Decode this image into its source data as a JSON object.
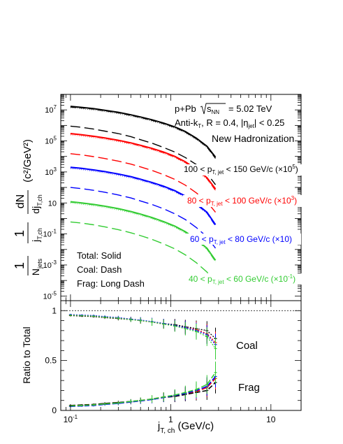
{
  "chart_data": [
    {
      "type": "line",
      "panel": "top",
      "x_scale": "log",
      "y_scale": "log",
      "xlim": [
        0.08,
        20
      ],
      "ylim": [
        5e-06,
        100000000
      ],
      "y_ticks": [
        {
          "v": 10000000,
          "base": "10",
          "exp": "7"
        },
        {
          "v": 100000,
          "base": "10",
          "exp": "5"
        },
        {
          "v": 1000,
          "base": "10",
          "exp": "3"
        },
        {
          "v": 10,
          "base": "10",
          "exp": ""
        },
        {
          "v": 0.1,
          "base": "10",
          "exp": "-1"
        },
        {
          "v": 0.001,
          "base": "10",
          "exp": "-3"
        },
        {
          "v": 1e-05,
          "base": "10",
          "exp": "-5"
        }
      ],
      "ylabel": {
        "first": "1",
        "first_denominator": "N",
        "first_denominator_sub": "jets",
        "second": "1",
        "second_denominator": "j",
        "second_denominator_sub": "T,ch",
        "third": "dN",
        "third_denominator": "dj",
        "third_denominator_sub": "T,ch",
        "units": "(c²/GeV²)"
      },
      "annotations": {
        "system_a": "p+Pb",
        "system_root": "s",
        "system_root_sub": "NN",
        "system_b": "= 5.02 TeV",
        "algo_a": "Anti-k",
        "algo_sub": "T",
        "algo_b": ", R = 0.4, |η",
        "algo_eta_sub": "jet",
        "algo_c": "| < 0.25",
        "model": "New Hadronization"
      },
      "legend": {
        "total": "Total: Solid",
        "coal": "Coal: Dash",
        "frag": "Frag: Long Dash"
      },
      "bin_labels": [
        {
          "pre": "100 < p",
          "sub": "T, jet",
          "post": " < 150 GeV/c (×10",
          "sup": "5",
          "end": ")",
          "color": "#000000"
        },
        {
          "pre": "80 < p",
          "sub": "T, jet",
          "post": " < 100 GeV/c (×10",
          "sup": "3",
          "end": ")",
          "color": "#ff0000"
        },
        {
          "pre": "60 < p",
          "sub": "T, jet",
          "post": " < 80 GeV/c (×10)",
          "sup": "",
          "end": "",
          "color": "#0000ff"
        },
        {
          "pre": "40 < p",
          "sub": "T, jet",
          "post": " < 60 GeV/c (×10",
          "sup": "-1",
          "end": ")",
          "color": "#33cc33"
        }
      ],
      "x": [
        0.1,
        0.13,
        0.17,
        0.22,
        0.3,
        0.4,
        0.5,
        0.65,
        0.85,
        1.1,
        1.4,
        1.8,
        2.3,
        2.8
      ],
      "series": [
        {
          "bin": "100-150",
          "component": "Total",
          "color": "#000000",
          "values": [
            17000000,
            14500000,
            12000000,
            9500000,
            7000000,
            4800000,
            3500000,
            2300000,
            1400000,
            800000,
            400000,
            150000,
            45000,
            9000
          ]
        },
        {
          "bin": "100-150",
          "component": "Coal",
          "color": "#000000",
          "values": [
            15500000,
            13500000,
            11200000,
            8800000,
            6500000,
            4500000,
            3250000,
            2130000,
            1300000,
            740000,
            370000,
            138000,
            41000,
            7500
          ]
        },
        {
          "bin": "100-150",
          "component": "Frag",
          "color": "#000000",
          "values": [
            900000,
            750000,
            580000,
            430000,
            300000,
            190000,
            120000,
            72000,
            38000,
            19000,
            8500,
            3000,
            800,
            150
          ]
        },
        {
          "bin": "80-100",
          "component": "Total",
          "color": "#ff0000",
          "values": [
            300000,
            250000,
            200000,
            155000,
            110000,
            75000,
            52000,
            33000,
            19000,
            10000,
            4500,
            1500,
            420,
            80
          ]
        },
        {
          "bin": "80-100",
          "component": "Coal",
          "color": "#ff0000",
          "values": [
            285000,
            240000,
            190000,
            147000,
            104000,
            70000,
            48500,
            30500,
            17500,
            9200,
            4100,
            1360,
            375,
            65
          ]
        },
        {
          "bin": "80-100",
          "component": "Frag",
          "color": "#ff0000",
          "values": [
            15000,
            12500,
            9700,
            7300,
            5000,
            3200,
            2100,
            1250,
            670,
            330,
            140,
            45,
            12,
            2.5
          ]
        },
        {
          "bin": "60-80",
          "component": "Total",
          "color": "#0000ff",
          "values": [
            2000,
            1700,
            1350,
            1050,
            740,
            500,
            340,
            210,
            120,
            62,
            28,
            9,
            2.5,
            0.4
          ]
        },
        {
          "bin": "60-80",
          "component": "Coal",
          "color": "#0000ff",
          "values": [
            1900,
            1620,
            1290,
            1000,
            700,
            470,
            318,
            195,
            111,
            57,
            25.5,
            8.2,
            2.25,
            0.33
          ]
        },
        {
          "bin": "60-80",
          "component": "Frag",
          "color": "#0000ff",
          "values": [
            100,
            84,
            65,
            49,
            33,
            21,
            13.5,
            8,
            4.2,
            2,
            0.85,
            0.26,
            0.065,
            0.012
          ]
        },
        {
          "bin": "40-60",
          "component": "Total",
          "color": "#33cc33",
          "values": [
            12,
            10,
            8,
            6.2,
            4.3,
            2.8,
            1.9,
            1.15,
            0.63,
            0.32,
            0.14,
            0.045,
            0.012,
            0.002
          ]
        },
        {
          "bin": "40-60",
          "component": "Coal",
          "color": "#33cc33",
          "values": [
            11.4,
            9.5,
            7.6,
            5.9,
            4.1,
            2.65,
            1.8,
            1.08,
            0.59,
            0.3,
            0.13,
            0.041,
            0.0108,
            0.0017
          ]
        },
        {
          "bin": "40-60",
          "component": "Frag",
          "color": "#33cc33",
          "values": [
            0.6,
            0.5,
            0.39,
            0.29,
            0.19,
            0.12,
            0.078,
            0.045,
            0.023,
            0.011,
            0.0045,
            0.0014,
            0.00035,
            7e-05
          ]
        }
      ]
    },
    {
      "type": "scatter",
      "panel": "bottom",
      "x_scale": "log",
      "xlim": [
        0.08,
        20
      ],
      "ylim": [
        0,
        1.1
      ],
      "reference_line_y": 1,
      "ylabel": "Ratio to Total",
      "xlabel": {
        "pre": "j",
        "sub": "T, ch",
        "post": " (GeV/c)"
      },
      "x_ticks": [
        {
          "v": 0.1,
          "base": "10",
          "exp": "-1"
        },
        {
          "v": 1,
          "base": "1",
          "exp": ""
        },
        {
          "v": 10,
          "base": "10",
          "exp": ""
        }
      ],
      "y_ticks": [
        {
          "v": 0,
          "label": "0"
        },
        {
          "v": 0.5,
          "label": "0.5"
        },
        {
          "v": 1,
          "label": "1"
        }
      ],
      "labels": {
        "coal": "Coal",
        "frag": "Frag"
      },
      "x": [
        0.1,
        0.13,
        0.17,
        0.22,
        0.3,
        0.4,
        0.5,
        0.65,
        0.85,
        1.1,
        1.4,
        1.8,
        2.3,
        2.8
      ],
      "series": [
        {
          "bin": "100-150",
          "component": "Coal",
          "color": "#000000",
          "values": [
            0.95,
            0.945,
            0.94,
            0.93,
            0.92,
            0.91,
            0.9,
            0.89,
            0.87,
            0.86,
            0.84,
            0.82,
            0.8,
            0.72
          ]
        },
        {
          "bin": "80-100",
          "component": "Coal",
          "color": "#ff0000",
          "values": [
            0.955,
            0.95,
            0.945,
            0.935,
            0.925,
            0.915,
            0.9,
            0.885,
            0.865,
            0.85,
            0.83,
            0.81,
            0.77,
            0.68
          ]
        },
        {
          "bin": "60-80",
          "component": "Coal",
          "color": "#0000ff",
          "values": [
            0.96,
            0.955,
            0.95,
            0.94,
            0.93,
            0.915,
            0.905,
            0.89,
            0.87,
            0.85,
            0.83,
            0.8,
            0.76,
            0.66
          ]
        },
        {
          "bin": "40-60",
          "component": "Coal",
          "color": "#33cc33",
          "values": [
            0.955,
            0.95,
            0.945,
            0.935,
            0.925,
            0.91,
            0.9,
            0.885,
            0.865,
            0.845,
            0.82,
            0.79,
            0.74,
            0.62
          ]
        },
        {
          "bin": "100-150",
          "component": "Frag",
          "color": "#000000",
          "values": [
            0.05,
            0.055,
            0.06,
            0.07,
            0.08,
            0.09,
            0.1,
            0.11,
            0.13,
            0.14,
            0.16,
            0.18,
            0.2,
            0.28
          ]
        },
        {
          "bin": "80-100",
          "component": "Frag",
          "color": "#ff0000",
          "values": [
            0.045,
            0.05,
            0.055,
            0.065,
            0.075,
            0.085,
            0.1,
            0.115,
            0.135,
            0.15,
            0.17,
            0.19,
            0.23,
            0.32
          ]
        },
        {
          "bin": "60-80",
          "component": "Frag",
          "color": "#0000ff",
          "values": [
            0.04,
            0.045,
            0.05,
            0.06,
            0.07,
            0.085,
            0.095,
            0.11,
            0.13,
            0.15,
            0.17,
            0.2,
            0.24,
            0.34
          ]
        },
        {
          "bin": "40-60",
          "component": "Frag",
          "color": "#33cc33",
          "values": [
            0.045,
            0.05,
            0.055,
            0.065,
            0.075,
            0.09,
            0.1,
            0.115,
            0.135,
            0.155,
            0.18,
            0.21,
            0.26,
            0.38
          ]
        }
      ]
    }
  ]
}
